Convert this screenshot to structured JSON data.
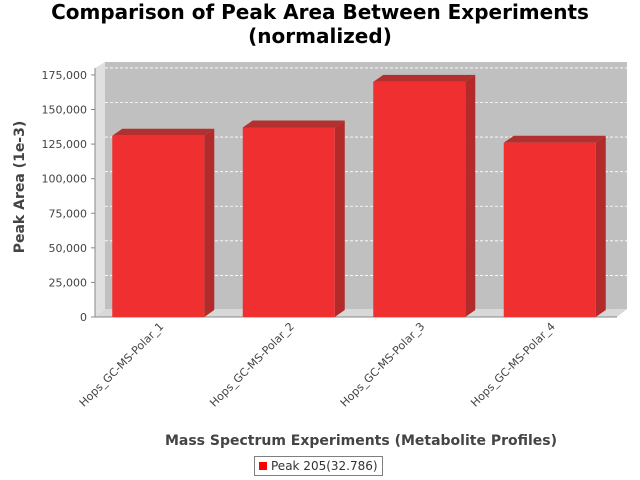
{
  "chart_data": {
    "type": "bar",
    "title": [
      "Comparison of Peak Area Between Experiments",
      "(normalized)"
    ],
    "xlabel": "Mass Spectrum Experiments (Metabolite Profiles)",
    "ylabel": "Peak Area (1e-3)",
    "categories": [
      "Hops_GC-MS-Polar_1",
      "Hops_GC-MS-Polar_2",
      "Hops_GC-MS-Polar_3",
      "Hops_GC-MS-Polar_4"
    ],
    "series": [
      {
        "name": "Peak 205(32.786)",
        "values": [
          131000,
          137000,
          170000,
          126000
        ],
        "color": "#ff0000"
      }
    ],
    "ylim": [
      0,
      180000
    ],
    "yticks": [
      0,
      25000,
      50000,
      75000,
      100000,
      125000,
      150000,
      175000
    ],
    "ytick_labels": [
      "0",
      "25,000",
      "50,000",
      "75,000",
      "100,000",
      "125,000",
      "150,000",
      "175,000"
    ],
    "grid": true,
    "style": "3d",
    "legend_position": "bottom-center"
  }
}
